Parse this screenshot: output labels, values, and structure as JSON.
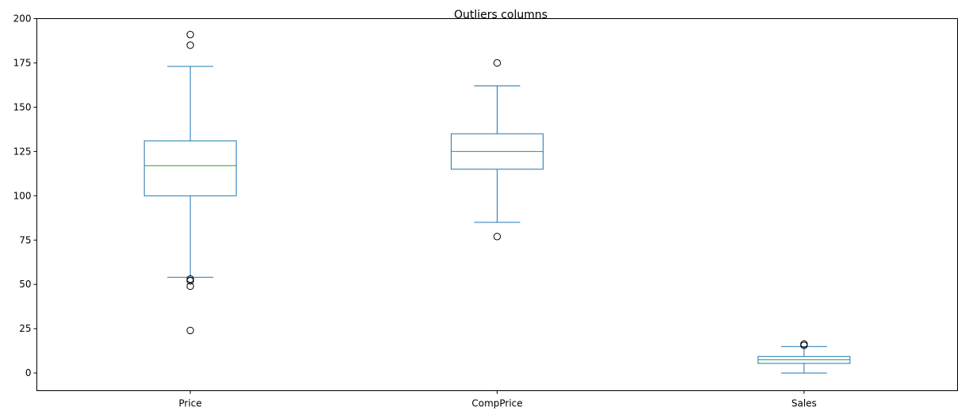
{
  "chart_data": {
    "type": "box",
    "title": "Outliers columns",
    "xlabel": "",
    "ylabel": "",
    "categories": [
      "Price",
      "CompPrice",
      "Sales"
    ],
    "ylim": [
      -10,
      200
    ],
    "yticks": [
      0,
      25,
      50,
      75,
      100,
      125,
      150,
      175,
      200
    ],
    "grid": false,
    "boxes": [
      {
        "name": "Price",
        "whisker_low": 54,
        "q1": 100,
        "median": 117,
        "q3": 131,
        "whisker_high": 173,
        "outliers": [
          191,
          185,
          53,
          52,
          49,
          24
        ]
      },
      {
        "name": "CompPrice",
        "whisker_low": 85,
        "q1": 115,
        "median": 125,
        "q3": 135,
        "whisker_high": 162,
        "outliers": [
          175,
          77
        ]
      },
      {
        "name": "Sales",
        "whisker_low": 0,
        "q1": 5.4,
        "median": 7.5,
        "q3": 9.3,
        "whisker_high": 14.9,
        "outliers": [
          16.3,
          15.6
        ]
      }
    ],
    "colors": {
      "box": "#1f77b4",
      "median": "#2ca02c",
      "outlier": "#000000",
      "axis": "#000000"
    }
  }
}
